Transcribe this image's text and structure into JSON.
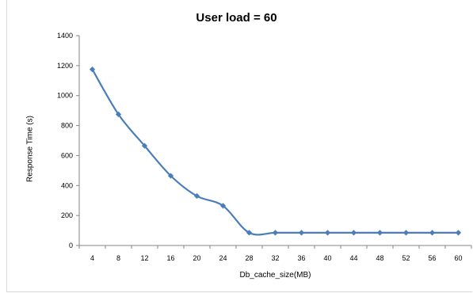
{
  "chart_data": {
    "type": "line",
    "title": "User load = 60",
    "xlabel": "Db_cache_size(MB)",
    "ylabel": "Response Time (s)",
    "ylim": [
      0,
      1400
    ],
    "yticks": [
      0,
      200,
      400,
      600,
      800,
      1000,
      1200,
      1400
    ],
    "categories": [
      "4",
      "8",
      "12",
      "16",
      "20",
      "24",
      "28",
      "32",
      "36",
      "40",
      "44",
      "48",
      "52",
      "56",
      "60"
    ],
    "series": [
      {
        "values": [
          1175,
          875,
          665,
          465,
          330,
          265,
          85,
          85,
          85,
          85,
          85,
          85,
          85,
          85,
          85
        ],
        "color": "#4a7ebb",
        "marker": "diamond",
        "smooth": true
      }
    ],
    "grid": false,
    "legend": "none"
  }
}
